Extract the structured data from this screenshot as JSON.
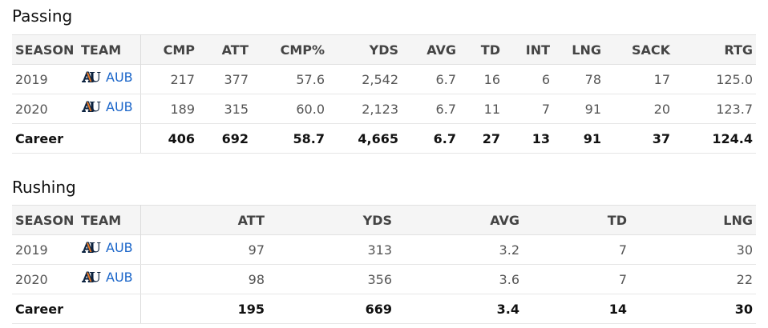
{
  "passing": {
    "title": "Passing",
    "headers": [
      "SEASON",
      "TEAM",
      "CMP",
      "ATT",
      "CMP%",
      "YDS",
      "AVG",
      "TD",
      "INT",
      "LNG",
      "SACK",
      "RTG"
    ],
    "rows": [
      {
        "season": "2019",
        "team": "AUB",
        "logo": "auburn-au-logo-icon",
        "cmp": "217",
        "att": "377",
        "cmp_pct": "57.6",
        "yds": "2,542",
        "avg": "6.7",
        "td": "16",
        "int": "6",
        "lng": "78",
        "sack": "17",
        "rtg": "125.0"
      },
      {
        "season": "2020",
        "team": "AUB",
        "logo": "auburn-au-logo-icon",
        "cmp": "189",
        "att": "315",
        "cmp_pct": "60.0",
        "yds": "2,123",
        "avg": "6.7",
        "td": "11",
        "int": "7",
        "lng": "91",
        "sack": "20",
        "rtg": "123.7"
      }
    ],
    "career": {
      "label": "Career",
      "cmp": "406",
      "att": "692",
      "cmp_pct": "58.7",
      "yds": "4,665",
      "avg": "6.7",
      "td": "27",
      "int": "13",
      "lng": "91",
      "sack": "37",
      "rtg": "124.4"
    }
  },
  "rushing": {
    "title": "Rushing",
    "headers": [
      "SEASON",
      "TEAM",
      "ATT",
      "YDS",
      "AVG",
      "TD",
      "LNG"
    ],
    "rows": [
      {
        "season": "2019",
        "team": "AUB",
        "logo": "auburn-au-logo-icon",
        "att": "97",
        "yds": "313",
        "avg": "3.2",
        "td": "7",
        "lng": "30"
      },
      {
        "season": "2020",
        "team": "AUB",
        "logo": "auburn-au-logo-icon",
        "att": "98",
        "yds": "356",
        "avg": "3.6",
        "td": "7",
        "lng": "22"
      }
    ],
    "career": {
      "label": "Career",
      "att": "195",
      "yds": "669",
      "avg": "3.4",
      "td": "14",
      "lng": "30"
    }
  },
  "colors": {
    "link": "#1a65c9",
    "logo_navy": "#0c2340",
    "logo_orange": "#e87722",
    "header_bg": "#f5f5f5"
  }
}
